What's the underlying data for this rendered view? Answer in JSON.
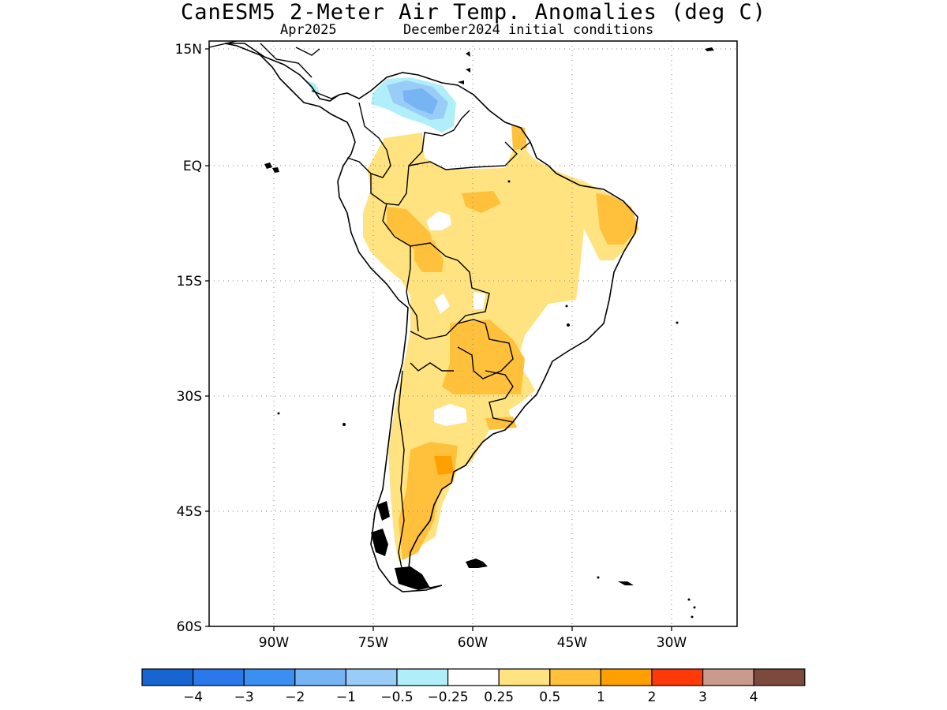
{
  "title": "CanESM5 2-Meter Air Temp. Anomalies (deg C)",
  "subtitle_left": "Apr2025",
  "subtitle_right": "December2024 initial conditions",
  "lat_labels": [
    "15N",
    "EQ",
    "15S",
    "30S",
    "45S",
    "60S"
  ],
  "lon_labels": [
    "90W",
    "75W",
    "60W",
    "45W",
    "30W"
  ],
  "colorbar": {
    "colors": [
      "#1765d0",
      "#2a78ea",
      "#3b8ff0",
      "#76b4f4",
      "#99cdf8",
      "#b0eefa",
      "#ffffff",
      "#ffe380",
      "#ffc13b",
      "#ffa000",
      "#ff3a0a",
      "#c89b8c",
      "#7b4a3c"
    ],
    "labels": [
      "-4",
      "-3",
      "-2",
      "-1",
      "-0.5",
      "-0.25",
      "0.25",
      "0.5",
      "1",
      "2",
      "3",
      "4"
    ]
  },
  "anomaly_levels": {
    "cool_light": "-0.25 to -0.5",
    "cool_mid": "-0.5 to -1",
    "warm_light": "0.25 to 0.5",
    "warm_mid": "0.5 to 1",
    "warm_strong": "1 to 2"
  }
}
